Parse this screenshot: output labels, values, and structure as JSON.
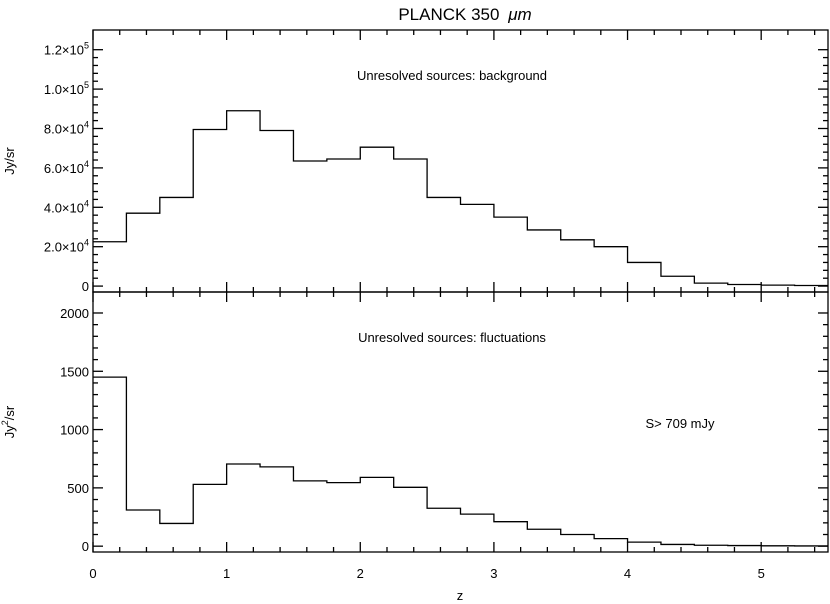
{
  "chart_data": {
    "type": "line",
    "title_main": "PLANCK 350",
    "title_unit": "μm",
    "xlabel": "z",
    "xlim": [
      0,
      5.5
    ],
    "x_ticks": [
      "0",
      "1",
      "2",
      "3",
      "4",
      "5"
    ],
    "panels": [
      {
        "ylabel": "Jy/sr",
        "ylim": [
          -3000,
          130000
        ],
        "y_ticks": [
          {
            "value": 0,
            "mantissa": "0",
            "exp": ""
          },
          {
            "value": 20000,
            "mantissa": "2.0×10",
            "exp": "4"
          },
          {
            "value": 40000,
            "mantissa": "4.0×10",
            "exp": "4"
          },
          {
            "value": 60000,
            "mantissa": "6.0×10",
            "exp": "4"
          },
          {
            "value": 80000,
            "mantissa": "8.0×10",
            "exp": "4"
          },
          {
            "value": 100000,
            "mantissa": "1.0×10",
            "exp": "5"
          },
          {
            "value": 120000,
            "mantissa": "1.2×10",
            "exp": "5"
          }
        ],
        "annotation": "Unresolved sources: background",
        "step_edges": [
          0,
          0.25,
          0.5,
          0.75,
          1.0,
          1.25,
          1.5,
          1.75,
          2.0,
          2.25,
          2.5,
          2.75,
          3.0,
          3.25,
          3.5,
          3.75,
          4.0,
          4.25,
          4.5,
          4.75,
          5.0,
          5.25,
          5.5
        ],
        "values": [
          22500,
          37000,
          45000,
          79500,
          89000,
          79000,
          63500,
          64500,
          70500,
          64500,
          45000,
          41500,
          35000,
          28500,
          23500,
          20000,
          12000,
          5000,
          1500,
          800,
          500,
          300
        ]
      },
      {
        "ylabel_main": "Jy",
        "ylabel_exp": "2",
        "ylabel_tail": "/sr",
        "ylim": [
          -50,
          2180
        ],
        "y_ticks": [
          {
            "value": 0,
            "mantissa": "0",
            "exp": ""
          },
          {
            "value": 500,
            "mantissa": "500",
            "exp": ""
          },
          {
            "value": 1000,
            "mantissa": "1000",
            "exp": ""
          },
          {
            "value": 1500,
            "mantissa": "1500",
            "exp": ""
          },
          {
            "value": 2000,
            "mantissa": "2000",
            "exp": ""
          }
        ],
        "annotation": "Unresolved sources: fluctuations",
        "annotation2": "S> 709 mJy",
        "step_edges": [
          0,
          0.25,
          0.5,
          0.75,
          1.0,
          1.25,
          1.5,
          1.75,
          2.0,
          2.25,
          2.5,
          2.75,
          3.0,
          3.25,
          3.5,
          3.75,
          4.0,
          4.25,
          4.5,
          4.75,
          5.0,
          5.25,
          5.5
        ],
        "values": [
          1450,
          310,
          195,
          530,
          705,
          680,
          560,
          545,
          590,
          505,
          325,
          275,
          210,
          145,
          100,
          65,
          35,
          15,
          8,
          5,
          3,
          2
        ]
      }
    ]
  }
}
